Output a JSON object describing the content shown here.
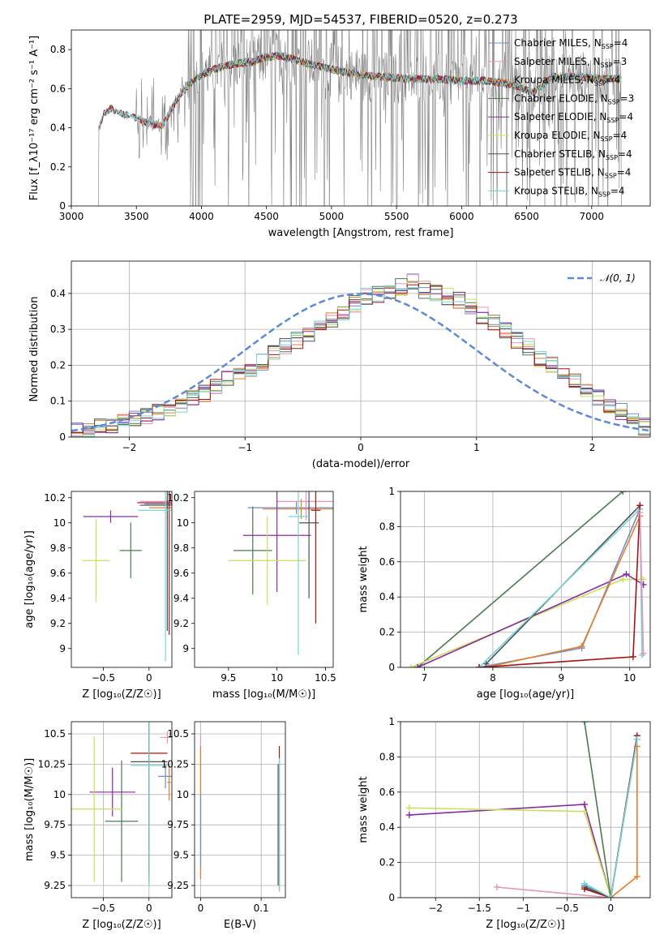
{
  "colors": {
    "Chabrier MILES": "#6a8fd0",
    "Salpeter MILES": "#e893b8",
    "Kroupa MILES": "#e57e27",
    "Chabrier ELODIE": "#4a7b50",
    "Salpeter ELODIE": "#8a2aa0",
    "Kroupa ELODIE": "#c8e05a",
    "Chabrier STELIB": "#505050",
    "Salpeter STELIB": "#a01616",
    "Kroupa STELIB": "#72d6d6",
    "gaussian": "#5b8bd6",
    "data": "#808080"
  },
  "chart_data": [
    {
      "id": "spectrum",
      "type": "line",
      "title": "PLATE=2959, MJD=54537, FIBERID=0520, z=0.273",
      "xlabel": "wavelength [Angstrom, rest frame]",
      "ylabel": "Flux [f_λ10⁻¹⁷ erg cm⁻² s⁻¹ A⁻¹]",
      "xlim": [
        3000,
        7450
      ],
      "ylim": [
        0,
        0.9
      ],
      "xticks": [
        3000,
        3500,
        4000,
        4500,
        5000,
        5500,
        6000,
        6500,
        7000
      ],
      "yticks": [
        0.0,
        0.2,
        0.4,
        0.6,
        0.8
      ],
      "grid": false,
      "legend_position": "upper-right",
      "legend": [
        {
          "name": "Chabrier MILES, N",
          "sub": "SSP",
          "val": "=4"
        },
        {
          "name": "Salpeter MILES, N",
          "sub": "SSP",
          "val": "=3"
        },
        {
          "name": "Kroupa MILES, N",
          "sub": "SSP",
          "val": "=4"
        },
        {
          "name": "Chabrier ELODIE, N",
          "sub": "SSP",
          "val": "=3"
        },
        {
          "name": "Salpeter ELODIE, N",
          "sub": "SSP",
          "val": "=4"
        },
        {
          "name": "Kroupa ELODIE, N",
          "sub": "SSP",
          "val": "=4"
        },
        {
          "name": "Chabrier STELIB, N",
          "sub": "SSP",
          "val": "=4"
        },
        {
          "name": "Salpeter STELIB, N",
          "sub": "SSP",
          "val": "=4"
        },
        {
          "name": "Kroupa STELIB, N",
          "sub": "SSP",
          "val": "=4"
        }
      ],
      "model_continuum": {
        "x": [
          3200,
          3250,
          3300,
          3400,
          3500,
          3600,
          3700,
          3800,
          3900,
          4000,
          4100,
          4200,
          4300,
          4400,
          4500,
          4600,
          4700,
          4800,
          5000,
          5200,
          5400,
          5600,
          5800,
          6000,
          6200,
          6400,
          6550,
          6700,
          6900,
          7100,
          7200
        ],
        "y": [
          0.38,
          0.47,
          0.5,
          0.47,
          0.45,
          0.42,
          0.41,
          0.53,
          0.62,
          0.67,
          0.7,
          0.72,
          0.73,
          0.74,
          0.76,
          0.77,
          0.75,
          0.73,
          0.7,
          0.67,
          0.66,
          0.65,
          0.65,
          0.64,
          0.64,
          0.62,
          0.58,
          0.66,
          0.66,
          0.65,
          0.65
        ]
      }
    },
    {
      "id": "residuals",
      "type": "line",
      "xlabel": "(data-model)/error",
      "ylabel": "Normed distribution",
      "xlim": [
        -2.5,
        2.5
      ],
      "ylim": [
        0,
        0.49
      ],
      "xticks": [
        -2,
        -1,
        0,
        1,
        2
      ],
      "yticks": [
        0.0,
        0.1,
        0.2,
        0.3,
        0.4
      ],
      "grid": true,
      "legend_position": "upper-right",
      "legend": [
        {
          "name": "𝒩(0, 1)"
        }
      ],
      "bins": {
        "start": -2.5,
        "width": 0.1
      },
      "histogram": [
        0.02,
        0.02,
        0.03,
        0.03,
        0.04,
        0.05,
        0.06,
        0.07,
        0.08,
        0.09,
        0.11,
        0.12,
        0.14,
        0.16,
        0.18,
        0.19,
        0.21,
        0.23,
        0.25,
        0.27,
        0.29,
        0.31,
        0.33,
        0.35,
        0.37,
        0.39,
        0.4,
        0.41,
        0.42,
        0.43,
        0.41,
        0.4,
        0.39,
        0.38,
        0.36,
        0.34,
        0.32,
        0.3,
        0.27,
        0.25,
        0.22,
        0.2,
        0.18,
        0.16,
        0.13,
        0.11,
        0.09,
        0.07,
        0.05,
        0.03
      ]
    },
    {
      "id": "age-vs-Z",
      "type": "scatter",
      "xlabel": "Z [log₁₀(Z/Z☉)]",
      "ylabel": "age  [log₁₀(age/yr)]",
      "xlim": [
        -0.85,
        0.25
      ],
      "ylim": [
        8.85,
        10.25
      ],
      "xticks": [
        -0.5,
        0.0
      ],
      "yticks": [
        9.0,
        9.2,
        9.4,
        9.6,
        9.8,
        10.0,
        10.2
      ],
      "grid": false,
      "points": [
        {
          "series": "Chabrier MILES",
          "x": 0.2,
          "y": 10.15,
          "xerr": 0.25,
          "yerr": 0.05
        },
        {
          "series": "Salpeter MILES",
          "x": 0.2,
          "y": 10.17,
          "xerr": 0.3,
          "yerr": 0.03
        },
        {
          "series": "Kroupa MILES",
          "x": 0.2,
          "y": 10.12,
          "xerr": 0.2,
          "yerr": 0.1
        },
        {
          "series": "Chabrier ELODIE",
          "x": -0.2,
          "y": 9.78,
          "xerr": 0.12,
          "yerr": 0.22
        },
        {
          "series": "Salpeter ELODIE",
          "x": -0.42,
          "y": 10.05,
          "xerr": 0.3,
          "yerr": 0.05
        },
        {
          "series": "Kroupa ELODIE",
          "x": -0.58,
          "y": 9.7,
          "xerr": 0.15,
          "yerr": 0.33
        },
        {
          "series": "Chabrier STELIB",
          "x": 0.2,
          "y": 10.14,
          "xerr": 0.3,
          "yerr": 1.0
        },
        {
          "series": "Salpeter STELIB",
          "x": 0.22,
          "y": 10.16,
          "xerr": 0.35,
          "yerr": 1.05
        },
        {
          "series": "Kroupa STELIB",
          "x": 0.18,
          "y": 10.1,
          "xerr": 0.3,
          "yerr": 1.2
        }
      ]
    },
    {
      "id": "age-vs-mass",
      "type": "scatter",
      "xlabel": "mass [log₁₀(M/M☉)]",
      "ylabel": "",
      "xlim": [
        9.15,
        10.58
      ],
      "ylim": [
        8.85,
        10.25
      ],
      "xticks": [
        9.5,
        10.0,
        10.5
      ],
      "yticks": [
        9.0,
        9.2,
        9.4,
        9.6,
        9.8,
        10.0,
        10.2
      ],
      "grid": false,
      "points": [
        {
          "series": "Chabrier MILES",
          "x": 10.2,
          "y": 10.12,
          "xerr": 0.5,
          "yerr": 0.05
        },
        {
          "series": "Salpeter MILES",
          "x": 10.3,
          "y": 10.17,
          "xerr": 0.3,
          "yerr": 0.15
        },
        {
          "series": "Kroupa MILES",
          "x": 10.25,
          "y": 10.11,
          "xerr": 0.4,
          "yerr": 0.08
        },
        {
          "series": "Chabrier ELODIE",
          "x": 9.75,
          "y": 9.78,
          "xerr": 0.2,
          "yerr": 0.35
        },
        {
          "series": "Salpeter ELODIE",
          "x": 10.0,
          "y": 9.9,
          "xerr": 0.35,
          "yerr": 0.45
        },
        {
          "series": "Kroupa ELODIE",
          "x": 9.9,
          "y": 9.7,
          "xerr": 0.4,
          "yerr": 0.35
        },
        {
          "series": "Chabrier STELIB",
          "x": 10.33,
          "y": 10.0,
          "xerr": 0.1,
          "yerr": 0.6
        },
        {
          "series": "Salpeter STELIB",
          "x": 10.4,
          "y": 10.1,
          "xerr": 0.05,
          "yerr": 0.9
        },
        {
          "series": "Kroupa STELIB",
          "x": 10.22,
          "y": 10.05,
          "xerr": 0.1,
          "yerr": 1.1
        }
      ]
    },
    {
      "id": "weight-vs-age",
      "type": "line",
      "xlabel": "age  [log₁₀(age/yr)]",
      "ylabel": "mass weight",
      "xlim": [
        6.65,
        10.3
      ],
      "ylim": [
        0,
        1.0
      ],
      "xticks": [
        7,
        8,
        9,
        10
      ],
      "yticks": [
        0.0,
        0.2,
        0.4,
        0.6,
        0.8,
        1.0
      ],
      "grid": true,
      "series": [
        {
          "name": "Chabrier ELODIE",
          "x": [
            6.9,
            9.9
          ],
          "y": [
            0.0,
            1.0
          ]
        },
        {
          "name": "Kroupa ELODIE",
          "x": [
            6.8,
            9.9,
            10.2
          ],
          "y": [
            0.0,
            0.5,
            0.5
          ]
        },
        {
          "name": "Salpeter ELODIE",
          "x": [
            6.9,
            9.95,
            10.2
          ],
          "y": [
            0.0,
            0.53,
            0.47
          ]
        },
        {
          "name": "Chabrier MILES",
          "x": [
            7.8,
            9.3,
            10.15
          ],
          "y": [
            0.0,
            0.11,
            0.9
          ]
        },
        {
          "name": "Kroupa MILES",
          "x": [
            7.9,
            9.3,
            10.15
          ],
          "y": [
            0.0,
            0.12,
            0.86
          ]
        },
        {
          "name": "Chabrier STELIB",
          "x": [
            7.9,
            10.15
          ],
          "y": [
            0.02,
            0.92
          ]
        },
        {
          "name": "Kroupa STELIB",
          "x": [
            7.8,
            10.15,
            10.18
          ],
          "y": [
            0.0,
            0.9,
            0.07
          ]
        },
        {
          "name": "Salpeter STELIB",
          "x": [
            7.8,
            10.05,
            10.15
          ],
          "y": [
            0.0,
            0.06,
            0.92
          ]
        },
        {
          "name": "Salpeter MILES",
          "x": [
            10.15,
            10.2
          ],
          "y": [
            0.88,
            0.08
          ]
        }
      ]
    },
    {
      "id": "mass-vs-Z",
      "type": "scatter",
      "xlabel": "Z [log₁₀(Z/Z☉)]",
      "ylabel": "mass [log₁₀(M/M☉)]",
      "xlim": [
        -0.85,
        0.25
      ],
      "ylim": [
        9.15,
        10.6
      ],
      "xticks": [
        -0.5,
        0.0
      ],
      "yticks": [
        9.25,
        9.5,
        9.75,
        10.0,
        10.25,
        10.5
      ],
      "grid": true,
      "points": [
        {
          "series": "Chabrier MILES",
          "x": 0.18,
          "y": 10.15,
          "xerr": 0.08,
          "yerr": 0.1
        },
        {
          "series": "Salpeter MILES",
          "x": 0.2,
          "y": 10.47,
          "xerr": 0.08,
          "yerr": 0.05
        },
        {
          "series": "Kroupa MILES",
          "x": 0.22,
          "y": 10.1,
          "xerr": 0.02,
          "yerr": 0.15
        },
        {
          "series": "Chabrier ELODIE",
          "x": -0.3,
          "y": 9.78,
          "xerr": 0.18,
          "yerr": 0.5
        },
        {
          "series": "Salpeter ELODIE",
          "x": -0.4,
          "y": 10.02,
          "xerr": 0.25,
          "yerr": 0.2
        },
        {
          "series": "Kroupa ELODIE",
          "x": -0.6,
          "y": 9.88,
          "xerr": 0.3,
          "yerr": 0.6
        },
        {
          "series": "Chabrier STELIB",
          "x": 0.0,
          "y": 10.27,
          "xerr": 0.2,
          "yerr": 1.0
        },
        {
          "series": "Salpeter STELIB",
          "x": 0.0,
          "y": 10.34,
          "xerr": 0.2,
          "yerr": 1.0
        },
        {
          "series": "Kroupa STELIB",
          "x": 0.0,
          "y": 10.24,
          "xerr": 0.2,
          "yerr": 1.0
        }
      ]
    },
    {
      "id": "mass-vs-ebv",
      "type": "scatter",
      "xlabel": "E(B-V)",
      "ylabel": "",
      "xlim": [
        -0.01,
        0.14
      ],
      "ylim": [
        9.15,
        10.6
      ],
      "xticks": [
        0.0,
        0.1
      ],
      "yticks": [
        9.25,
        9.5,
        9.75,
        10.0,
        10.25,
        10.5
      ],
      "grid": true,
      "points": [
        {
          "series": "Salpeter MILES",
          "x": 0.0,
          "y": 9.9,
          "xerr": 0,
          "yerr": 0.6
        },
        {
          "series": "Kroupa MILES",
          "x": 0.0,
          "y": 9.85,
          "xerr": 0,
          "yerr": 0.55
        },
        {
          "series": "Chabrier MILES",
          "x": 0.0,
          "y": 9.7,
          "xerr": 0,
          "yerr": 0.3
        },
        {
          "series": "Salpeter STELIB",
          "x": 0.13,
          "y": 9.8,
          "xerr": 0,
          "yerr": 0.6
        },
        {
          "series": "Kroupa STELIB",
          "x": 0.13,
          "y": 9.75,
          "xerr": 0,
          "yerr": 0.55
        },
        {
          "series": "Chabrier STELIB",
          "x": 0.128,
          "y": 9.75,
          "xerr": 0,
          "yerr": 0.5
        }
      ]
    },
    {
      "id": "weight-vs-Z",
      "type": "line",
      "xlabel": "Z [log₁₀(Z/Z☉)]",
      "ylabel": "mass weight",
      "xlim": [
        -2.4,
        0.45
      ],
      "ylim": [
        0,
        1.0
      ],
      "xticks": [
        -2.0,
        -1.5,
        -1.0,
        -0.5,
        0.0
      ],
      "yticks": [
        0.0,
        0.2,
        0.4,
        0.6,
        0.8,
        1.0
      ],
      "grid": true,
      "series": [
        {
          "name": "Salpeter ELODIE",
          "x": [
            -2.3,
            -0.3,
            0.0
          ],
          "y": [
            0.47,
            0.53,
            0.0
          ]
        },
        {
          "name": "Kroupa ELODIE",
          "x": [
            -2.3,
            -0.3,
            0.0
          ],
          "y": [
            0.51,
            0.49,
            0.0
          ]
        },
        {
          "name": "Chabrier ELODIE",
          "x": [
            -0.3,
            0.0
          ],
          "y": [
            1.0,
            0.0
          ]
        },
        {
          "name": "Salpeter MILES",
          "x": [
            -1.3,
            0.0,
            0.3
          ],
          "y": [
            0.06,
            0.0,
            0.9
          ]
        },
        {
          "name": "Kroupa MILES",
          "x": [
            0.0,
            0.3,
            0.3
          ],
          "y": [
            0.0,
            0.12,
            0.86
          ]
        },
        {
          "name": "Chabrier MILES",
          "x": [
            -0.3,
            0.0,
            0.3
          ],
          "y": [
            0.07,
            0.0,
            0.9
          ]
        },
        {
          "name": "Chabrier STELIB",
          "x": [
            -0.3,
            0.0,
            0.3
          ],
          "y": [
            0.06,
            0.0,
            0.92
          ]
        },
        {
          "name": "Salpeter STELIB",
          "x": [
            -0.3,
            0.0,
            0.3
          ],
          "y": [
            0.05,
            0.0,
            0.92
          ]
        },
        {
          "name": "Kroupa STELIB",
          "x": [
            -0.3,
            0.0,
            0.3
          ],
          "y": [
            0.08,
            0.0,
            0.9
          ]
        }
      ]
    }
  ]
}
